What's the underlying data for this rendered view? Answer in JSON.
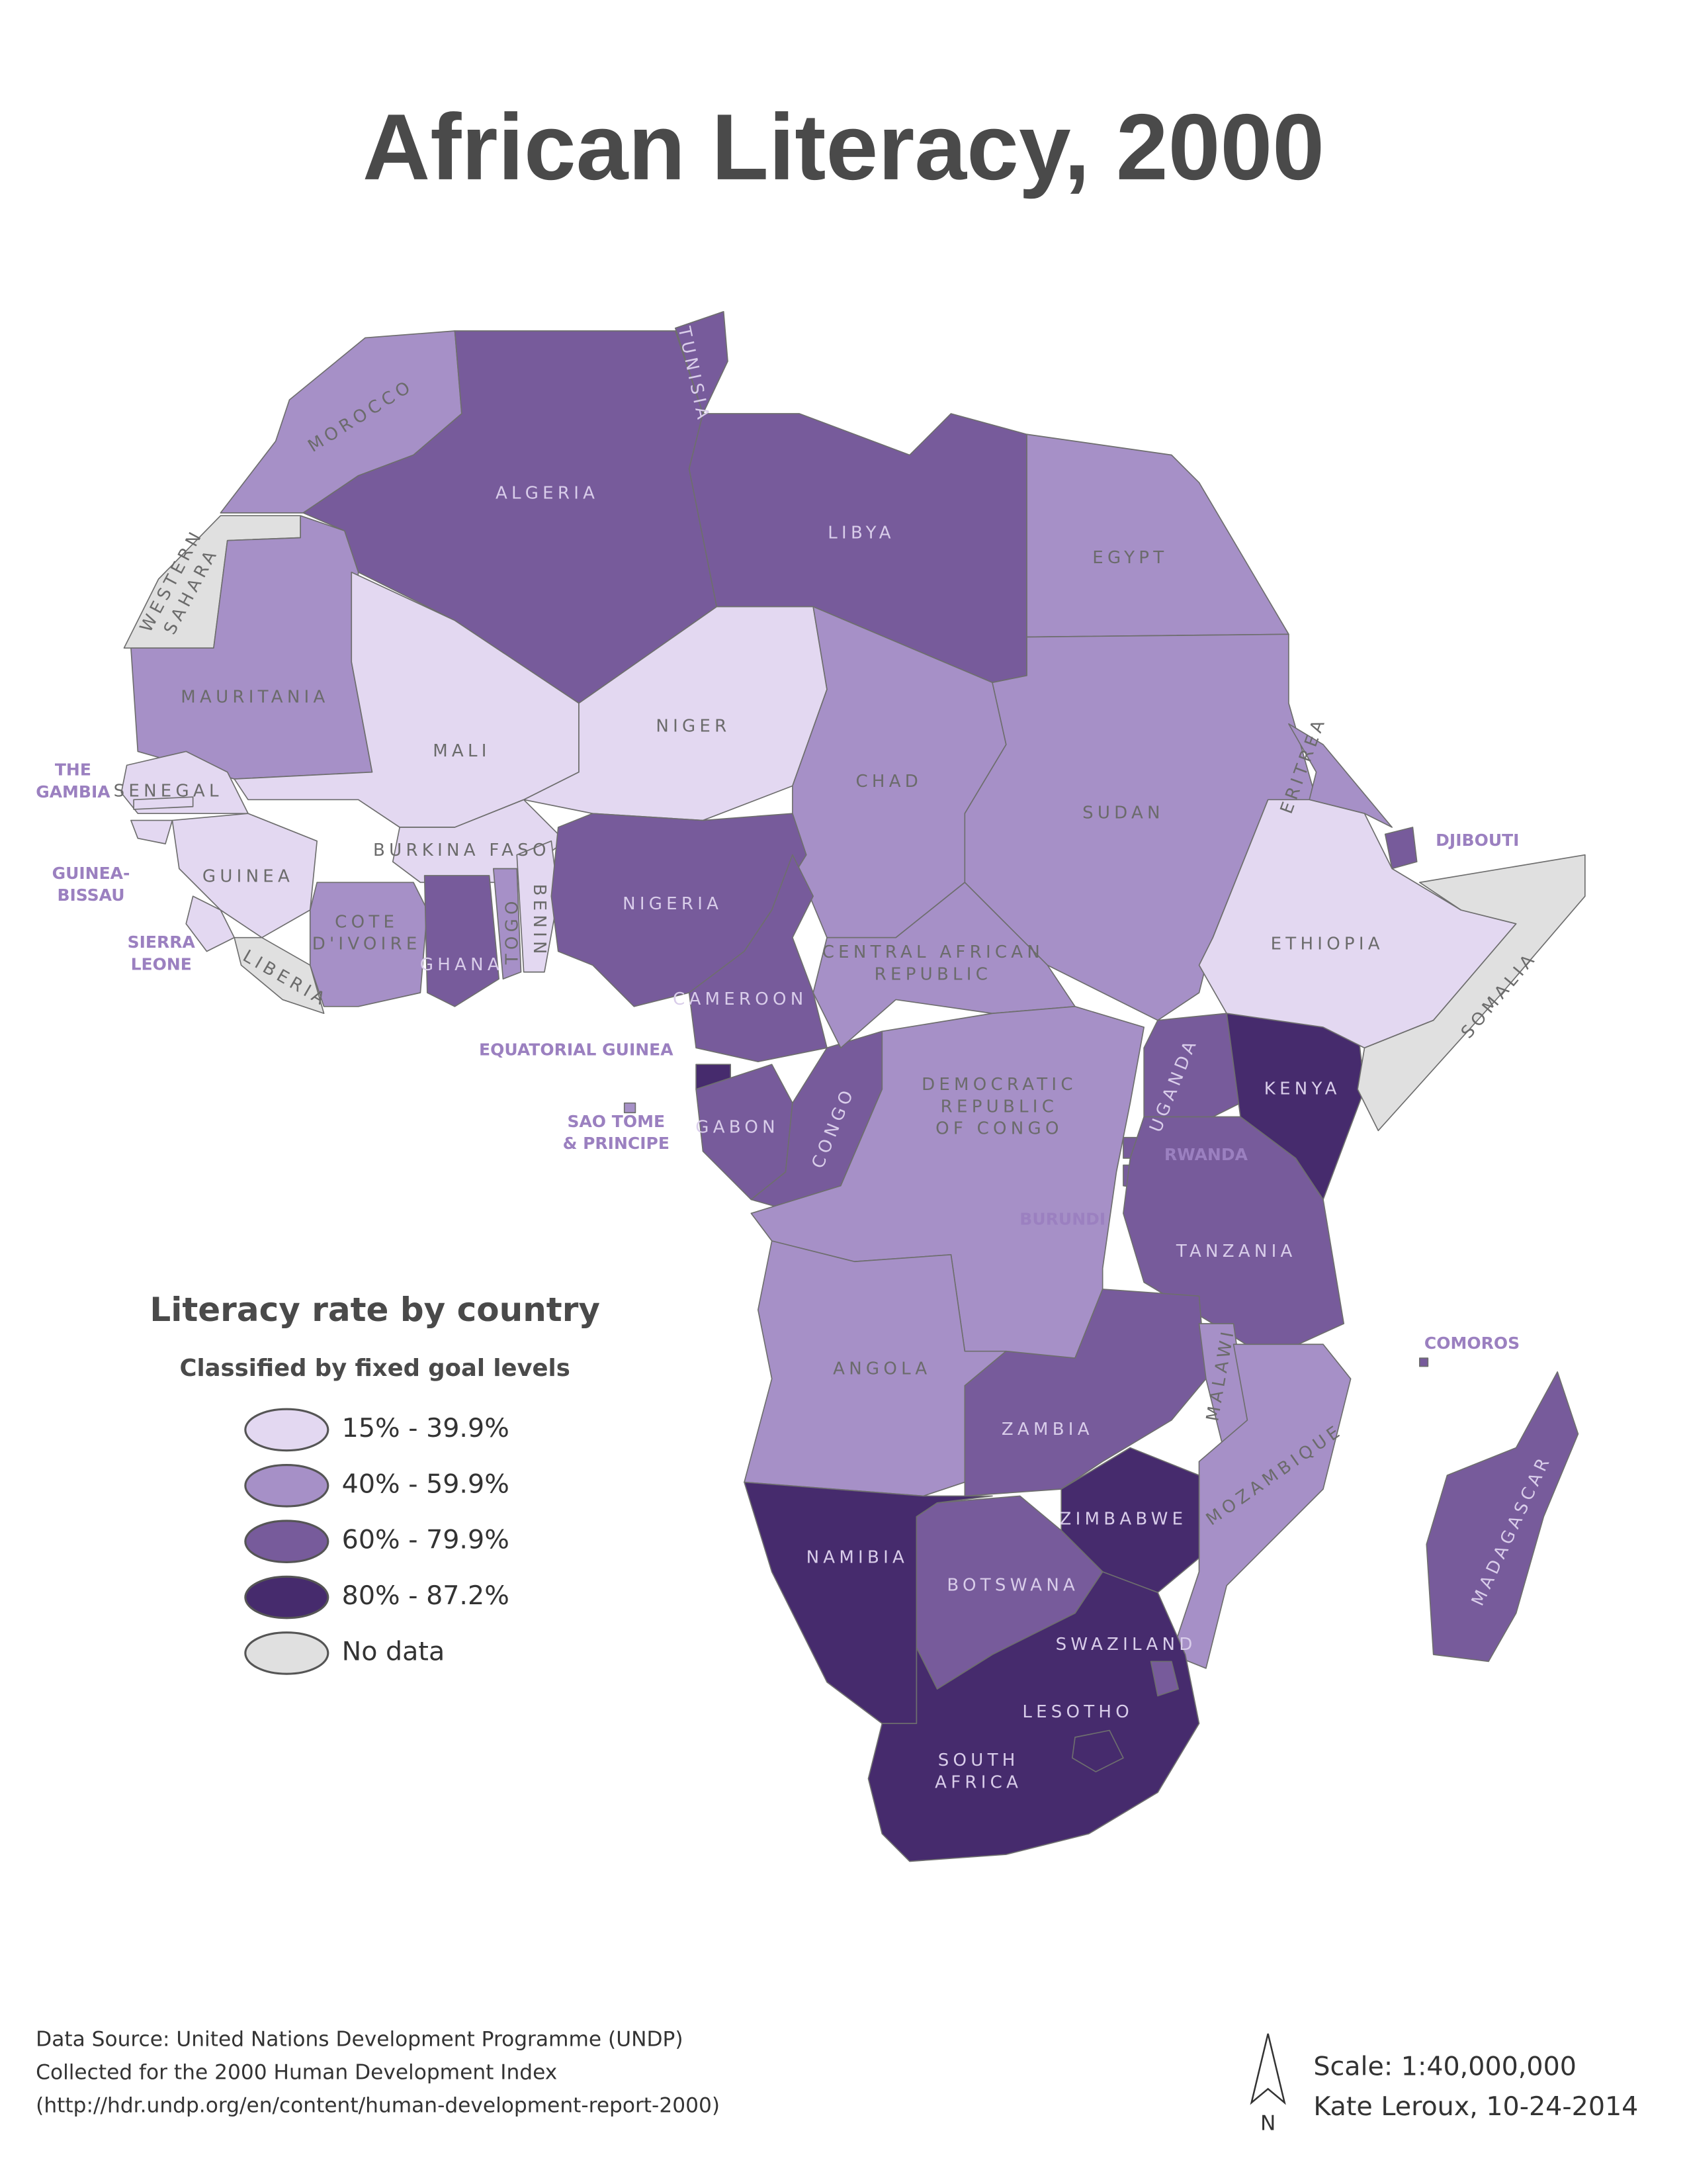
{
  "title": "African Literacy, 2000",
  "legend": {
    "title": "Literacy rate by country",
    "subtitle": "Classified by fixed goal levels",
    "classes": [
      {
        "label": "15% - 39.9%",
        "color": "#e3d8f1"
      },
      {
        "label": "40% - 59.9%",
        "color": "#a690c7"
      },
      {
        "label": "60% - 79.9%",
        "color": "#775b9b"
      },
      {
        "label": "80% - 87.2%",
        "color": "#462b6d"
      },
      {
        "label": "No data",
        "color": "#e0e0e0"
      }
    ]
  },
  "countries": [
    {
      "label": "MOROCCO",
      "class": 1
    },
    {
      "label": [
        "WESTERN",
        "SAHARA"
      ],
      "class": 4
    },
    {
      "label": "ALGERIA",
      "class": 2
    },
    {
      "label": "TUNISIA",
      "class": 2
    },
    {
      "label": "LIBYA",
      "class": 2
    },
    {
      "label": "EGYPT",
      "class": 1
    },
    {
      "label": "MAURITANIA",
      "class": 1
    },
    {
      "label": "MALI",
      "class": 0
    },
    {
      "label": "NIGER",
      "class": 0
    },
    {
      "label": "CHAD",
      "class": 1
    },
    {
      "label": "SUDAN",
      "class": 1
    },
    {
      "label": "ERITREA",
      "class": 1
    },
    {
      "label": "DJIBOUTI",
      "class": 2
    },
    {
      "label": "SENEGAL",
      "class": 0
    },
    {
      "label": [
        "THE",
        "GAMBIA"
      ],
      "class": 0
    },
    {
      "label": [
        "GUINEA-",
        "BISSAU"
      ],
      "class": 0
    },
    {
      "label": "GUINEA",
      "class": 0
    },
    {
      "label": [
        "SIERRA",
        "LEONE"
      ],
      "class": 0
    },
    {
      "label": "LIBERIA",
      "class": 4
    },
    {
      "label": [
        "COTE",
        "D'IVOIRE"
      ],
      "class": 1
    },
    {
      "label": "BURKINA FASO",
      "class": 0
    },
    {
      "label": "GHANA",
      "class": 2
    },
    {
      "label": "TOGO",
      "class": 1
    },
    {
      "label": "BENIN",
      "class": 0
    },
    {
      "label": "NIGERIA",
      "class": 2
    },
    {
      "label": "CAMEROON",
      "class": 2
    },
    {
      "label": "EQUATORIAL GUINEA",
      "class": 3
    },
    {
      "label": [
        "SAO TOME",
        "& PRINCIPE"
      ],
      "class": 1
    },
    {
      "label": "GABON",
      "class": 2
    },
    {
      "label": "CONGO",
      "class": 2
    },
    {
      "label": [
        "CENTRAL AFRICAN",
        "REPUBLIC"
      ],
      "class": 1
    },
    {
      "label": [
        "DEMOCRATIC",
        "REPUBLIC",
        "OF CONGO"
      ],
      "class": 1
    },
    {
      "label": "UGANDA",
      "class": 2
    },
    {
      "label": "KENYA",
      "class": 3
    },
    {
      "label": "RWANDA",
      "class": 2
    },
    {
      "label": "BURUNDI",
      "class": 2
    },
    {
      "label": "TANZANIA",
      "class": 2
    },
    {
      "label": "ETHIOPIA",
      "class": 0
    },
    {
      "label": "SOMALIA",
      "class": 4
    },
    {
      "label": "ANGOLA",
      "class": 1
    },
    {
      "label": "ZAMBIA",
      "class": 2
    },
    {
      "label": "MALAWI",
      "class": 1
    },
    {
      "label": "MOZAMBIQUE",
      "class": 1
    },
    {
      "label": "ZIMBABWE",
      "class": 3
    },
    {
      "label": "NAMIBIA",
      "class": 3
    },
    {
      "label": "BOTSWANA",
      "class": 2
    },
    {
      "label": [
        "SOUTH",
        "AFRICA"
      ],
      "class": 3
    },
    {
      "label": "SWAZILAND",
      "class": 2
    },
    {
      "label": "LESOTHO",
      "class": 3
    },
    {
      "label": "MADAGASCAR",
      "class": 2
    },
    {
      "label": "COMOROS",
      "class": 2
    }
  ],
  "footer": {
    "source": [
      "Data Source: United Nations Development Programme (UNDP)",
      "Collected for the 2000 Human Development Index",
      "(http://hdr.undp.org/en/content/human-development-report-2000)"
    ],
    "north": "N",
    "scale": "Scale: 1:40,000,000",
    "author": "Kate Leroux, 10-24-2014"
  }
}
